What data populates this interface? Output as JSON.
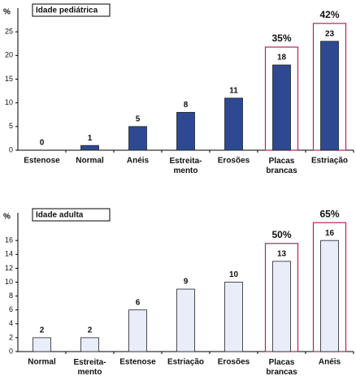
{
  "chart_data": [
    {
      "type": "bar",
      "title": "Idade pediátrica",
      "y_label": "%",
      "categories": [
        "Estenose",
        "Normal",
        "Anéis",
        "Estreita-\nmento",
        "Erosões",
        "Placas\nbrancas",
        "Estriação"
      ],
      "values": [
        0,
        1,
        5,
        8,
        11,
        18,
        23
      ],
      "color": "#2d4a90",
      "ylim": [
        0,
        30
      ],
      "yticks": [
        0,
        5,
        10,
        15,
        20,
        25
      ],
      "annotations": [
        {
          "category": "Placas\nbrancas",
          "text": "35%"
        },
        {
          "category": "Estriação",
          "text": "42%"
        }
      ],
      "highlight_color": "#b22650"
    },
    {
      "type": "bar",
      "title": "Idade adulta",
      "y_label": "%",
      "categories": [
        "Normal",
        "Estreita-\nmento",
        "Estenose",
        "Estriação",
        "Erosões",
        "Placas\nbrancas",
        "Anéis"
      ],
      "values": [
        2,
        2,
        6,
        9,
        10,
        13,
        16
      ],
      "color": "#e8edf9",
      "ylim": [
        0,
        20
      ],
      "yticks": [
        0,
        2,
        4,
        6,
        8,
        10,
        12,
        14,
        16
      ],
      "annotations": [
        {
          "category": "Placas\nbrancas",
          "text": "50%"
        },
        {
          "category": "Anéis",
          "text": "65%"
        }
      ],
      "highlight_color": "#b22650"
    }
  ]
}
